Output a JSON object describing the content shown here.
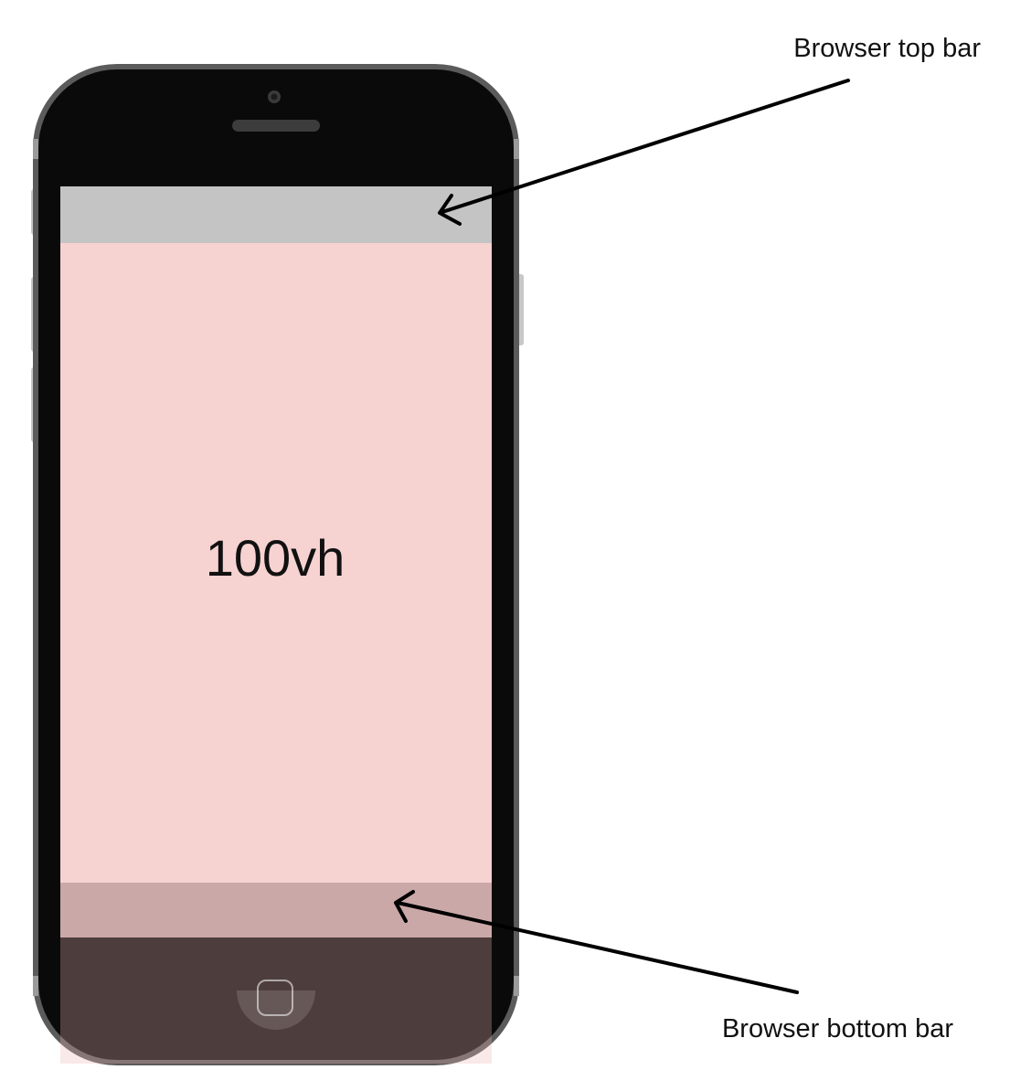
{
  "viewport_label": "100vh",
  "callouts": {
    "top_bar": "Browser top bar",
    "bottom_bar": "Browser bottom bar"
  },
  "colors": {
    "phone_body": "#0a0a0a",
    "phone_rim": "#5b5b5b",
    "side_button": "#c8c8c8",
    "top_bar": "#c4c4c4",
    "viewport_fill": "#f6d2d1",
    "bottom_bar": "#cba8a8",
    "overflow_region": "#f0b7b5",
    "arrow": "#000000"
  }
}
